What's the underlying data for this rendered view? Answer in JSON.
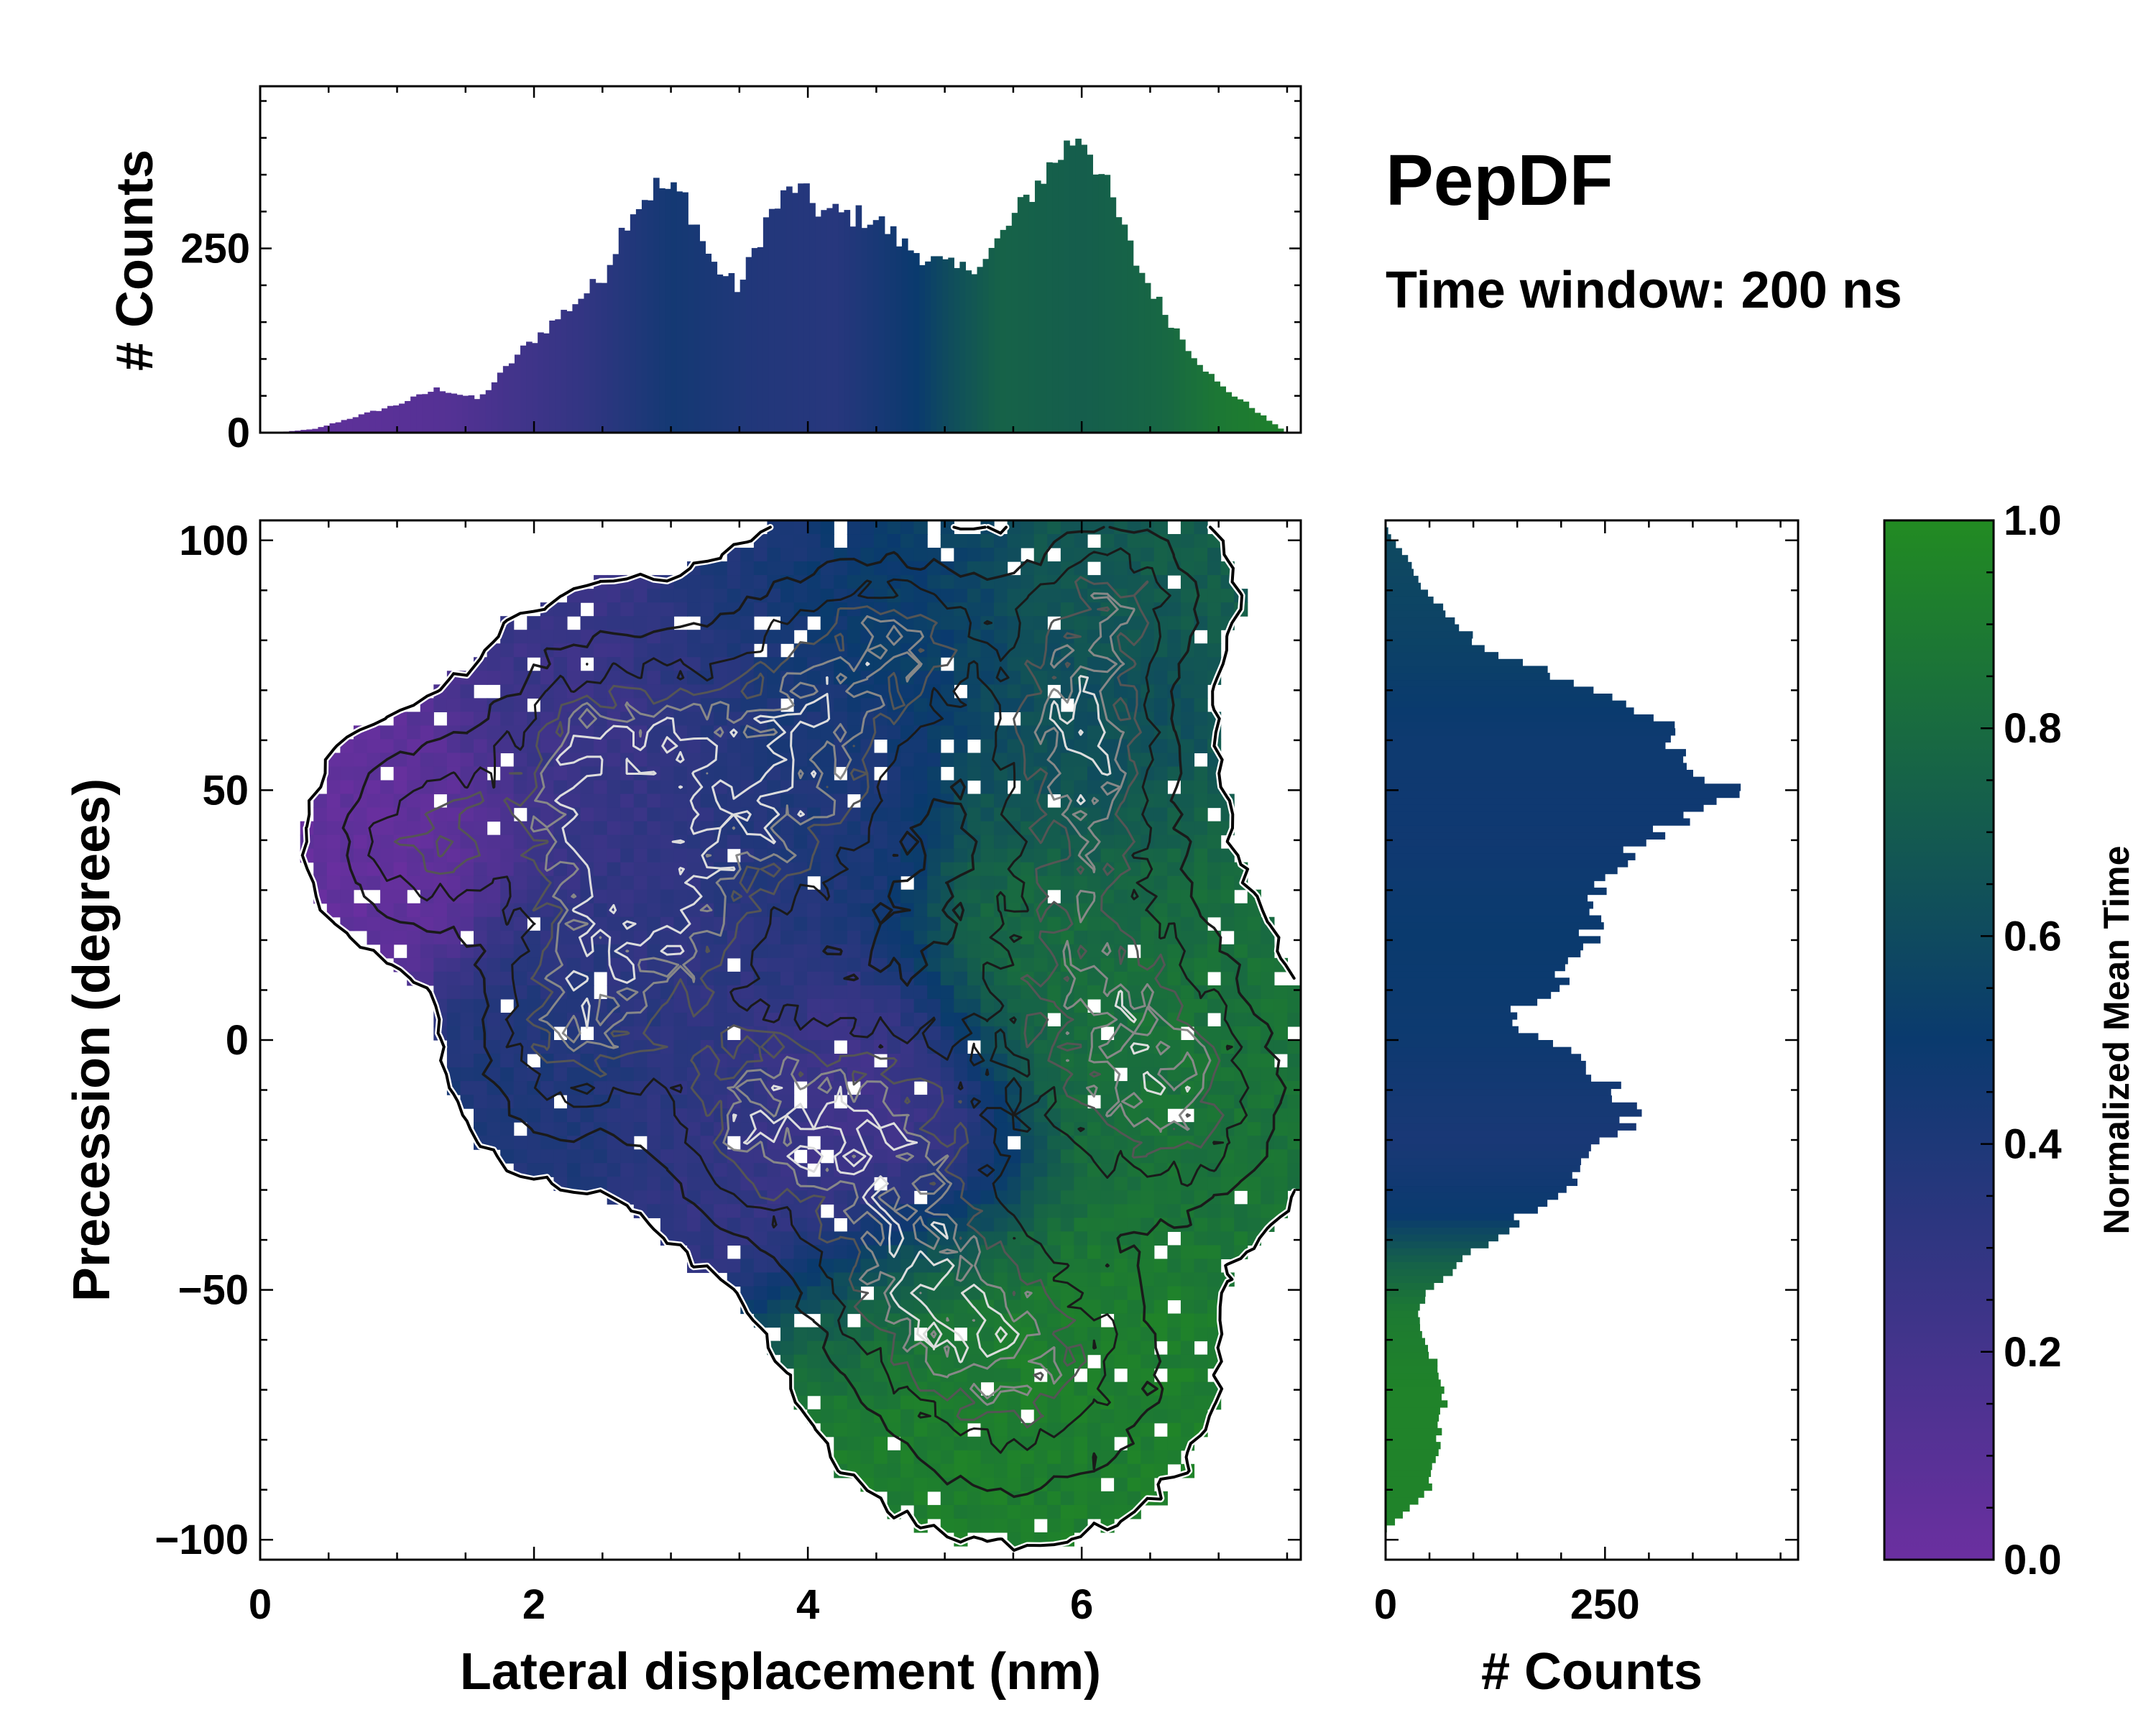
{
  "colors": {
    "cmap_low": "#6b2fa0",
    "cmap_mid": "#0a3a6e",
    "cmap_high": "#228b22",
    "contour_outline": "#000000",
    "contour_dark": "#1a1a1a",
    "contour_gray": "#555555",
    "contour_light": "#dddddd"
  },
  "annotations": {
    "title": "PepDF",
    "subtitle": "Time window: 200 ns"
  },
  "chart_data": [
    {
      "id": "top-histogram",
      "type": "bar",
      "title": "",
      "xlabel": "",
      "ylabel": "# Counts",
      "xlim": [
        0,
        7.6
      ],
      "ylim": [
        0,
        470
      ],
      "yticks": [
        0,
        250
      ],
      "ytick_labels": [
        "0",
        "250"
      ],
      "profile_x": [
        0.1,
        0.4,
        0.7,
        1.0,
        1.3,
        1.6,
        1.9,
        2.2,
        2.5,
        2.7,
        2.9,
        3.1,
        3.3,
        3.5,
        3.7,
        3.9,
        4.1,
        4.3,
        4.5,
        4.7,
        4.9,
        5.1,
        5.3,
        5.5,
        5.7,
        5.9,
        6.0,
        6.2,
        6.4,
        6.6,
        6.8,
        7.0,
        7.2,
        7.4,
        7.5
      ],
      "profile_counts": [
        0,
        5,
        22,
        38,
        60,
        45,
        110,
        160,
        210,
        300,
        335,
        320,
        230,
        195,
        290,
        335,
        300,
        295,
        290,
        255,
        235,
        220,
        235,
        290,
        345,
        390,
        410,
        325,
        230,
        165,
        110,
        65,
        40,
        12,
        0
      ],
      "color_profile_x": [
        0.0,
        0.8,
        1.4,
        1.8,
        2.4,
        3.0,
        3.6,
        4.2,
        4.8,
        5.0,
        5.4,
        6.0,
        6.6,
        7.0,
        7.6
      ],
      "color_profile_t": [
        0.05,
        0.08,
        0.12,
        0.2,
        0.3,
        0.45,
        0.38,
        0.35,
        0.5,
        0.6,
        0.75,
        0.72,
        0.78,
        0.88,
        0.95
      ]
    },
    {
      "id": "main-2d-histogram",
      "type": "heatmap",
      "title": "",
      "xlabel": "Lateral displacement (nm)",
      "ylabel": "Precession (degrees)",
      "xlim": [
        0,
        7.6
      ],
      "ylim": [
        -104,
        104
      ],
      "xticks": [
        0,
        2,
        4,
        6
      ],
      "xtick_labels": [
        "0",
        "2",
        "4",
        "6"
      ],
      "yticks": [
        -100,
        -50,
        0,
        50,
        100
      ],
      "ytick_labels": [
        "−100",
        "−50",
        "0",
        "50",
        "100"
      ],
      "color_value": "Normalized Mean Time",
      "clusters": [
        {
          "x": 1.2,
          "y": 40,
          "sx": 0.45,
          "sy": 13,
          "w": 0.8,
          "t": 0.05
        },
        {
          "x": 2.5,
          "y": 55,
          "sx": 0.55,
          "sy": 17,
          "w": 1.0,
          "t": 0.25
        },
        {
          "x": 2.8,
          "y": 25,
          "sx": 0.55,
          "sy": 18,
          "w": 0.9,
          "t": 0.3
        },
        {
          "x": 2.2,
          "y": 0,
          "sx": 0.45,
          "sy": 15,
          "w": 0.7,
          "t": 0.4
        },
        {
          "x": 3.9,
          "y": 55,
          "sx": 0.6,
          "sy": 22,
          "w": 1.0,
          "t": 0.4
        },
        {
          "x": 4.7,
          "y": 80,
          "sx": 0.5,
          "sy": 12,
          "w": 0.7,
          "t": 0.55
        },
        {
          "x": 4.5,
          "y": -20,
          "sx": 0.6,
          "sy": 18,
          "w": 1.0,
          "t": 0.2
        },
        {
          "x": 3.5,
          "y": -15,
          "sx": 0.45,
          "sy": 15,
          "w": 0.7,
          "t": 0.32
        },
        {
          "x": 6.0,
          "y": 62,
          "sx": 0.45,
          "sy": 18,
          "w": 1.0,
          "t": 0.62
        },
        {
          "x": 6.3,
          "y": 90,
          "sx": 0.45,
          "sy": 10,
          "w": 0.6,
          "t": 0.72
        },
        {
          "x": 6.0,
          "y": 15,
          "sx": 0.65,
          "sy": 22,
          "w": 0.8,
          "t": 0.82
        },
        {
          "x": 6.7,
          "y": -12,
          "sx": 0.55,
          "sy": 16,
          "w": 0.8,
          "t": 0.85
        },
        {
          "x": 5.5,
          "y": -65,
          "sx": 0.75,
          "sy": 18,
          "w": 0.9,
          "t": 0.92
        },
        {
          "x": 4.8,
          "y": -50,
          "sx": 0.5,
          "sy": 12,
          "w": 0.5,
          "t": 0.85
        }
      ]
    },
    {
      "id": "right-histogram",
      "type": "bar",
      "title": "",
      "xlabel": "# Counts",
      "ylabel": "",
      "xlim": [
        0,
        470
      ],
      "ylim": [
        -104,
        104
      ],
      "xticks": [
        0,
        250
      ],
      "xtick_labels": [
        "0",
        "250"
      ],
      "profile_y": [
        -98,
        -90,
        -80,
        -70,
        -60,
        -55,
        -50,
        -40,
        -30,
        -20,
        -15,
        -10,
        -5,
        0,
        5,
        10,
        15,
        20,
        25,
        30,
        35,
        40,
        45,
        50,
        55,
        60,
        65,
        70,
        75,
        80,
        85,
        90,
        95,
        100,
        103
      ],
      "profile_counts": [
        0,
        50,
        60,
        70,
        45,
        35,
        50,
        120,
        200,
        250,
        290,
        270,
        230,
        175,
        140,
        190,
        215,
        230,
        250,
        245,
        270,
        300,
        340,
        400,
        360,
        330,
        300,
        240,
        160,
        100,
        75,
        45,
        30,
        8,
        0
      ],
      "color_profile_y": [
        -104,
        -70,
        -55,
        -45,
        -35,
        -20,
        0,
        20,
        40,
        60,
        80,
        104
      ],
      "color_profile_t": [
        0.95,
        0.95,
        0.9,
        0.75,
        0.5,
        0.42,
        0.48,
        0.5,
        0.47,
        0.48,
        0.55,
        0.6
      ]
    },
    {
      "id": "colorbar",
      "type": "heatmap",
      "title": "",
      "label": "Normalized Mean Time",
      "ylim": [
        0,
        1
      ],
      "yticks": [
        0.0,
        0.2,
        0.4,
        0.6,
        0.8,
        1.0
      ],
      "ytick_labels": [
        "0.0",
        "0.2",
        "0.4",
        "0.6",
        "0.8",
        "1.0"
      ]
    }
  ]
}
